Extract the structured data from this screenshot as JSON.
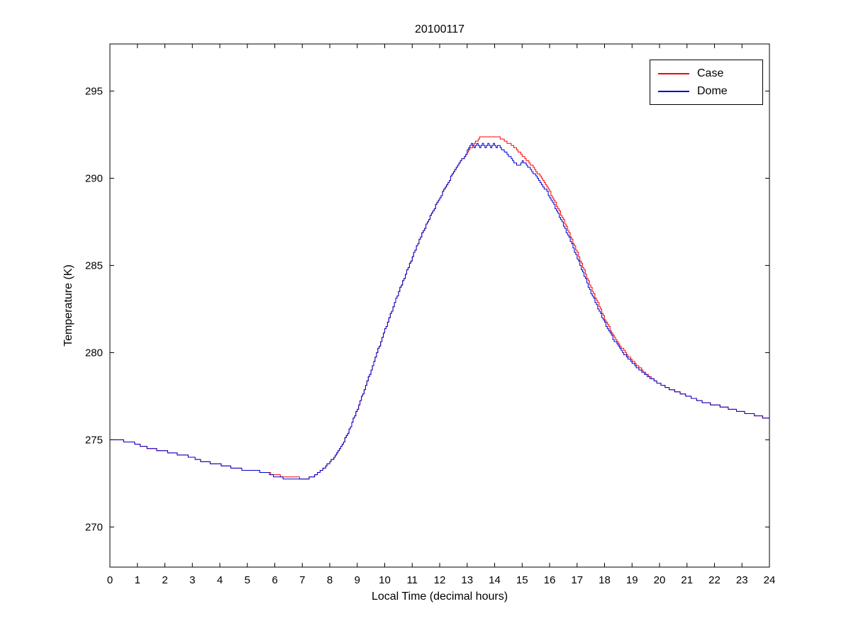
{
  "chart_data": {
    "type": "line",
    "title": "20100117",
    "xlabel": "Local Time (decimal hours)",
    "ylabel": "Temperature (K)",
    "xlim": [
      0,
      24
    ],
    "ylim": [
      267.7,
      297.7
    ],
    "xticks": [
      0,
      1,
      2,
      3,
      4,
      5,
      6,
      7,
      8,
      9,
      10,
      11,
      12,
      13,
      14,
      15,
      16,
      17,
      18,
      19,
      20,
      21,
      22,
      23,
      24
    ],
    "yticks": [
      270,
      275,
      280,
      285,
      290,
      295
    ],
    "grid": false,
    "legend_position": "top-right",
    "series": [
      {
        "name": "Case",
        "color": "#ff0000",
        "x": [
          0,
          0.3,
          0.6,
          0.9,
          1.2,
          1.5,
          1.8,
          2.1,
          2.4,
          2.7,
          3.0,
          3.3,
          3.6,
          3.9,
          4.2,
          4.5,
          4.8,
          5.1,
          5.4,
          5.7,
          6.0,
          6.3,
          6.6,
          6.9,
          7.2,
          7.5,
          7.8,
          8.1,
          8.4,
          8.7,
          9.0,
          9.3,
          9.6,
          9.9,
          10.2,
          10.5,
          10.8,
          11.1,
          11.4,
          11.7,
          12.0,
          12.3,
          12.6,
          12.9,
          13.2,
          13.5,
          13.8,
          14.1,
          14.4,
          14.7,
          15.0,
          15.3,
          15.6,
          15.9,
          16.2,
          16.5,
          16.8,
          17.1,
          17.4,
          17.7,
          18.0,
          18.3,
          18.6,
          18.9,
          19.2,
          19.5,
          19.8,
          20.1,
          20.4,
          20.7,
          21.0,
          21.5,
          22.0,
          22.5,
          23.0,
          23.5,
          24.0
        ],
        "y": [
          275.0,
          275.0,
          274.9,
          274.8,
          274.6,
          274.5,
          274.4,
          274.3,
          274.2,
          274.1,
          274.0,
          273.8,
          273.7,
          273.6,
          273.5,
          273.4,
          273.3,
          273.2,
          273.2,
          273.1,
          273.0,
          272.9,
          272.9,
          272.8,
          272.8,
          273.0,
          273.4,
          273.9,
          274.6,
          275.6,
          276.8,
          278.1,
          279.5,
          280.9,
          282.2,
          283.5,
          284.7,
          285.9,
          287.0,
          288.0,
          288.9,
          289.8,
          290.6,
          291.3,
          291.9,
          292.4,
          292.4,
          292.4,
          292.1,
          291.8,
          291.3,
          290.8,
          290.2,
          289.5,
          288.6,
          287.6,
          286.5,
          285.3,
          284.1,
          283.0,
          281.9,
          281.0,
          280.3,
          279.7,
          279.2,
          278.8,
          278.4,
          278.1,
          277.9,
          277.7,
          277.5,
          277.2,
          277.0,
          276.8,
          276.6,
          276.4,
          276.2
        ]
      },
      {
        "name": "Dome",
        "color": "#0000cc",
        "x": [
          0,
          0.3,
          0.6,
          0.9,
          1.2,
          1.5,
          1.8,
          2.1,
          2.4,
          2.7,
          3.0,
          3.3,
          3.6,
          3.9,
          4.2,
          4.5,
          4.8,
          5.1,
          5.4,
          5.7,
          6.0,
          6.3,
          6.6,
          6.9,
          7.2,
          7.5,
          7.8,
          8.1,
          8.4,
          8.7,
          9.0,
          9.3,
          9.6,
          9.9,
          10.2,
          10.5,
          10.8,
          11.1,
          11.4,
          11.7,
          12.0,
          12.3,
          12.6,
          12.9,
          13.05,
          13.15,
          13.25,
          13.35,
          13.45,
          13.55,
          13.65,
          13.75,
          13.85,
          13.95,
          14.05,
          14.15,
          14.25,
          14.4,
          14.55,
          14.7,
          14.85,
          15.0,
          15.3,
          15.6,
          15.9,
          16.2,
          16.5,
          16.8,
          17.1,
          17.4,
          17.7,
          18.0,
          18.3,
          18.6,
          18.9,
          19.2,
          19.5,
          19.8,
          20.1,
          20.4,
          20.7,
          21.0,
          21.5,
          22.0,
          22.5,
          23.0,
          23.5,
          24.0
        ],
        "y": [
          275.0,
          275.0,
          274.9,
          274.8,
          274.6,
          274.5,
          274.4,
          274.3,
          274.2,
          274.1,
          274.0,
          273.8,
          273.7,
          273.6,
          273.5,
          273.4,
          273.3,
          273.2,
          273.2,
          273.1,
          272.9,
          272.8,
          272.8,
          272.8,
          272.8,
          273.0,
          273.4,
          273.9,
          274.6,
          275.6,
          276.8,
          278.1,
          279.5,
          280.9,
          282.2,
          283.5,
          284.7,
          285.9,
          287.0,
          288.0,
          288.9,
          289.8,
          290.6,
          291.3,
          291.7,
          292.0,
          291.8,
          292.0,
          291.7,
          292.0,
          291.8,
          292.0,
          291.7,
          292.0,
          291.8,
          291.9,
          291.6,
          291.5,
          291.2,
          290.9,
          290.7,
          291.0,
          290.5,
          289.9,
          289.2,
          288.3,
          287.3,
          286.2,
          285.0,
          283.8,
          282.7,
          281.7,
          280.8,
          280.1,
          279.6,
          279.1,
          278.7,
          278.4,
          278.1,
          277.9,
          277.7,
          277.5,
          277.2,
          277.0,
          276.8,
          276.6,
          276.4,
          276.2
        ]
      }
    ]
  }
}
